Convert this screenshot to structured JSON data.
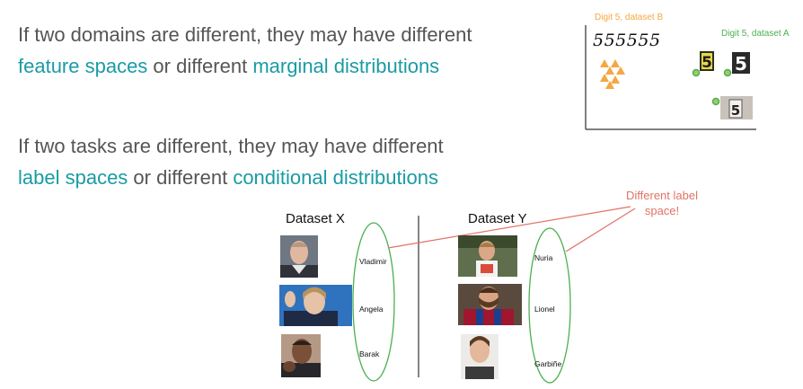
{
  "statements": {
    "domain": {
      "prefix": "If two domains are different, they may have different",
      "term1": "feature spaces",
      "joiner": " or different ",
      "term2": "marginal distributions"
    },
    "task": {
      "prefix": "If two tasks are different, they may have different",
      "term1": "label spaces",
      "joiner": " or different ",
      "term2": "conditional distributions"
    }
  },
  "plot": {
    "dataset_b_label": "Digit 5, dataset B",
    "dataset_b_digits": "555555",
    "dataset_a_label": "Digit 5, dataset A",
    "digit_tile": "5",
    "colors": {
      "dataset_b": "#f5a742",
      "dataset_a": "#4caf50",
      "axis": "#555555"
    }
  },
  "datasets": {
    "x": {
      "title": "Dataset X",
      "names": [
        "Vladimir",
        "Angela",
        "Barak"
      ]
    },
    "y": {
      "title": "Dataset Y",
      "names": [
        "Nuria",
        "Lionel",
        "Garbiñe"
      ]
    }
  },
  "callout": {
    "text_line1": "Different label",
    "text_line2": "space!"
  },
  "colors": {
    "accent": "#1a9ba3",
    "ellipse": "#4caf50",
    "callout": "#e07366"
  }
}
